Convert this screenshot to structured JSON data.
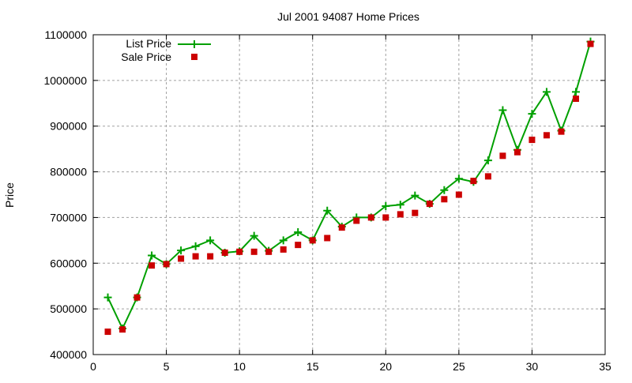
{
  "chart_data": {
    "type": "line",
    "title": "Jul 2001 94087 Home Prices",
    "xlabel": "",
    "ylabel": "Price",
    "xlim": [
      0,
      35
    ],
    "ylim": [
      400000,
      1100000
    ],
    "xticks": [
      0,
      5,
      10,
      15,
      20,
      25,
      30,
      35
    ],
    "yticks": [
      400000,
      500000,
      600000,
      700000,
      800000,
      900000,
      1000000,
      1100000
    ],
    "grid": true,
    "legend_position": "top-left",
    "x": [
      1,
      2,
      3,
      4,
      5,
      6,
      7,
      8,
      9,
      10,
      11,
      12,
      13,
      14,
      15,
      16,
      17,
      18,
      19,
      20,
      21,
      22,
      23,
      24,
      25,
      26,
      27,
      28,
      29,
      30,
      31,
      32,
      33,
      34
    ],
    "series": [
      {
        "name": "List Price",
        "style": "linespoints",
        "color": "#00a000",
        "values": [
          525000,
          457000,
          525000,
          617000,
          598000,
          628000,
          637000,
          650000,
          623000,
          626000,
          660000,
          627000,
          650000,
          668000,
          650000,
          715000,
          680000,
          700000,
          700000,
          725000,
          728000,
          748000,
          730000,
          760000,
          785000,
          778000,
          825000,
          935000,
          848000,
          927000,
          975000,
          890000,
          975000,
          1085000
        ]
      },
      {
        "name": "Sale Price",
        "style": "points",
        "color": "#cc0000",
        "values": [
          450000,
          455000,
          525000,
          595000,
          598000,
          610000,
          615000,
          615000,
          623000,
          625000,
          625000,
          625000,
          630000,
          640000,
          650000,
          655000,
          678000,
          693000,
          700000,
          700000,
          707000,
          710000,
          730000,
          740000,
          750000,
          780000,
          790000,
          835000,
          843000,
          870000,
          880000,
          888000,
          960000,
          1080000
        ]
      }
    ]
  }
}
